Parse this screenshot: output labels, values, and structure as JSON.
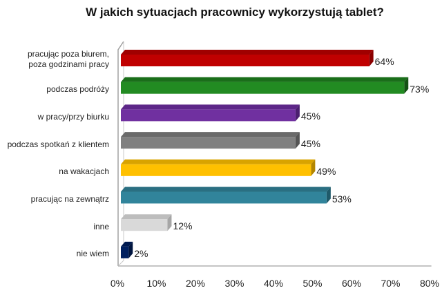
{
  "chart_data": {
    "type": "bar",
    "orientation": "horizontal",
    "style": "3d",
    "title": "W jakich sytuacjach pracownicy wykorzystują tablet?",
    "xlabel": "",
    "ylabel": "",
    "categories": [
      "pracując poza biurem, poza godzinami pracy",
      "podczas podróży",
      "w pracy/przy biurku",
      "podczas spotkań z klientem",
      "na wakacjach",
      "pracując na zewnątrz",
      "inne",
      "nie wiem"
    ],
    "category_lines": [
      [
        "pracując poza biurem,",
        "poza godzinami pracy"
      ],
      [
        "podczas podróży"
      ],
      [
        "w pracy/przy biurku"
      ],
      [
        "podczas spotkań z klientem"
      ],
      [
        "na wakacjach"
      ],
      [
        "pracując na zewnątrz"
      ],
      [
        "inne"
      ],
      [
        "nie wiem"
      ]
    ],
    "values": [
      64,
      73,
      45,
      45,
      49,
      53,
      12,
      2
    ],
    "value_labels": [
      "64%",
      "73%",
      "45%",
      "45%",
      "49%",
      "53%",
      "12%",
      "2%"
    ],
    "colors": [
      "#c00000",
      "#228b22",
      "#7030a0",
      "#808080",
      "#ffc000",
      "#31849b",
      "#d9d9d9",
      "#002060"
    ],
    "side_colors": [
      "#8b0000",
      "#145214",
      "#4b1f70",
      "#555555",
      "#b38600",
      "#1f5a6a",
      "#a6a6a6",
      "#00153f"
    ],
    "top_colors": [
      "#a00000",
      "#1a6e1a",
      "#5d2788",
      "#6a6a6a",
      "#d9a300",
      "#2a6f82",
      "#bdbdbd",
      "#001a50"
    ],
    "xlim": [
      0,
      80
    ],
    "xticks": [
      "0%",
      "10%",
      "20%",
      "30%",
      "40%",
      "50%",
      "60%",
      "70%",
      "80%"
    ],
    "grid": false,
    "legend": null
  }
}
